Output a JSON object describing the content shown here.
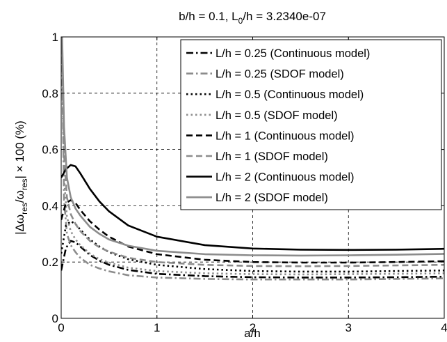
{
  "chart_data": {
    "type": "line",
    "title_parts": {
      "prefix": "b/h = 0.1, L",
      "sub": "0",
      "suffix": "/h = 3.2340e-07"
    },
    "xlabel": "a/h",
    "ylabel_parts": {
      "p1": "|Δω",
      "s1": "res",
      "p2": "/ω",
      "s2": "res",
      "p3": "| × 100  (%)"
    },
    "xlim": [
      0,
      4
    ],
    "ylim": [
      0,
      1
    ],
    "xticks": [
      0,
      1,
      2,
      3,
      4
    ],
    "yticks": [
      0,
      0.2,
      0.4,
      0.6,
      0.8,
      1
    ],
    "xtick_labels": [
      "0",
      "1",
      "2",
      "3",
      "4"
    ],
    "ytick_labels": [
      "0",
      "0.2",
      "0.4",
      "0.6",
      "0.8",
      "1"
    ],
    "grid": true,
    "legend_position": "top-right",
    "series": [
      {
        "name": "L/h = 0.25 (Continuous model)",
        "color": "#000000",
        "dash": "dashdot",
        "x": [
          0,
          0.05,
          0.1,
          0.15,
          0.2,
          0.3,
          0.4,
          0.5,
          0.7,
          1.0,
          1.5,
          2.0,
          2.5,
          3.0,
          3.5,
          4.0
        ],
        "y": [
          0.17,
          0.25,
          0.275,
          0.27,
          0.255,
          0.225,
          0.205,
          0.19,
          0.172,
          0.158,
          0.15,
          0.146,
          0.145,
          0.145,
          0.146,
          0.148
        ]
      },
      {
        "name": "L/h = 0.25 (SDOF model)",
        "color": "#8c8c8c",
        "dash": "dashdot",
        "x": [
          0.01,
          0.03,
          0.06,
          0.1,
          0.15,
          0.2,
          0.3,
          0.4,
          0.5,
          0.7,
          1.0,
          1.5,
          2.0,
          2.5,
          3.0,
          3.5,
          4.0
        ],
        "y": [
          0.9,
          0.42,
          0.3,
          0.26,
          0.235,
          0.215,
          0.19,
          0.177,
          0.167,
          0.153,
          0.145,
          0.14,
          0.138,
          0.138,
          0.138,
          0.14,
          0.142
        ]
      },
      {
        "name": "L/h = 0.5 (Continuous model)",
        "color": "#000000",
        "dash": "dot",
        "x": [
          0,
          0.05,
          0.1,
          0.15,
          0.2,
          0.3,
          0.4,
          0.5,
          0.7,
          1.0,
          1.5,
          2.0,
          2.5,
          3.0,
          3.5,
          4.0
        ],
        "y": [
          0.23,
          0.33,
          0.345,
          0.335,
          0.315,
          0.28,
          0.255,
          0.235,
          0.21,
          0.19,
          0.175,
          0.168,
          0.166,
          0.166,
          0.168,
          0.17
        ]
      },
      {
        "name": "L/h = 0.5 (SDOF model)",
        "color": "#8c8c8c",
        "dash": "dot",
        "x": [
          0.01,
          0.03,
          0.06,
          0.1,
          0.15,
          0.2,
          0.3,
          0.4,
          0.5,
          0.7,
          1.0,
          1.5,
          2.0,
          2.5,
          3.0,
          3.5,
          4.0
        ],
        "y": [
          0.93,
          0.5,
          0.36,
          0.31,
          0.28,
          0.26,
          0.23,
          0.21,
          0.198,
          0.18,
          0.168,
          0.16,
          0.157,
          0.156,
          0.157,
          0.158,
          0.16
        ]
      },
      {
        "name": "L/h = 1 (Continuous model)",
        "color": "#000000",
        "dash": "dash",
        "x": [
          0,
          0.05,
          0.1,
          0.15,
          0.2,
          0.3,
          0.4,
          0.5,
          0.7,
          1.0,
          1.5,
          2.0,
          2.5,
          3.0,
          3.5,
          4.0
        ],
        "y": [
          0.35,
          0.41,
          0.42,
          0.41,
          0.385,
          0.345,
          0.315,
          0.29,
          0.255,
          0.228,
          0.208,
          0.2,
          0.198,
          0.198,
          0.2,
          0.203
        ]
      },
      {
        "name": "L/h = 1 (SDOF model)",
        "color": "#8c8c8c",
        "dash": "dash",
        "x": [
          0.01,
          0.03,
          0.06,
          0.1,
          0.15,
          0.2,
          0.3,
          0.4,
          0.5,
          0.7,
          1.0,
          1.5,
          2.0,
          2.5,
          3.0,
          3.5,
          4.0
        ],
        "y": [
          0.96,
          0.58,
          0.43,
          0.37,
          0.335,
          0.31,
          0.275,
          0.252,
          0.237,
          0.215,
          0.2,
          0.19,
          0.186,
          0.185,
          0.186,
          0.188,
          0.19
        ]
      },
      {
        "name": "L/h = 2 (Continuous model)",
        "color": "#000000",
        "dash": "solid",
        "x": [
          0,
          0.05,
          0.1,
          0.15,
          0.2,
          0.3,
          0.4,
          0.5,
          0.7,
          1.0,
          1.5,
          2.0,
          2.5,
          3.0,
          3.5,
          4.0
        ],
        "y": [
          0.5,
          0.53,
          0.545,
          0.54,
          0.515,
          0.46,
          0.415,
          0.38,
          0.33,
          0.29,
          0.26,
          0.248,
          0.244,
          0.243,
          0.244,
          0.247
        ]
      },
      {
        "name": "L/h = 2 (SDOF model)",
        "color": "#8c8c8c",
        "dash": "solid",
        "x": [
          0.01,
          0.03,
          0.06,
          0.1,
          0.15,
          0.2,
          0.3,
          0.4,
          0.5,
          0.7,
          1.0,
          1.5,
          2.0,
          2.5,
          3.0,
          3.5,
          4.0
        ],
        "y": [
          1.0,
          0.68,
          0.5,
          0.43,
          0.39,
          0.365,
          0.325,
          0.3,
          0.28,
          0.258,
          0.24,
          0.228,
          0.224,
          0.223,
          0.224,
          0.226,
          0.229
        ]
      }
    ]
  }
}
